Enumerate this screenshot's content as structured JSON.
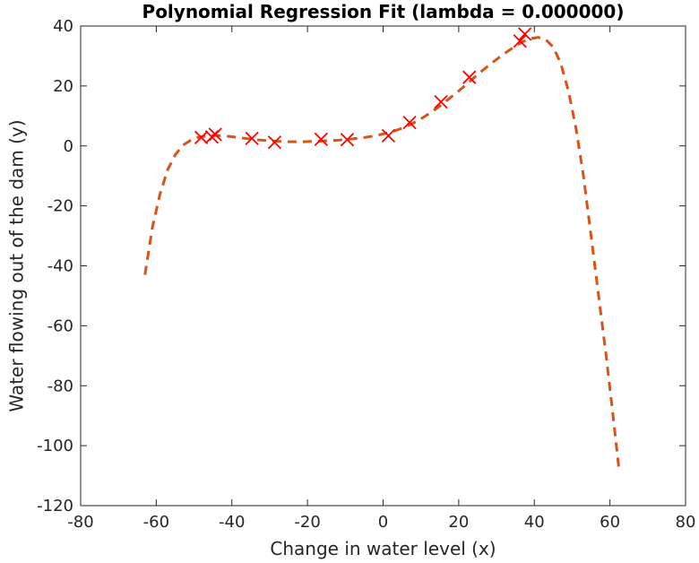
{
  "chart_data": {
    "type": "scatter",
    "title": "Polynomial Regression Fit (lambda = 0.000000)",
    "xlabel": "Change in water level (x)",
    "ylabel": "Water flowing out of the dam (y)",
    "xlim": [
      -80,
      80
    ],
    "ylim": [
      -120,
      40
    ],
    "xticks": [
      -80,
      -60,
      -40,
      -20,
      0,
      20,
      40,
      60,
      80
    ],
    "yticks": [
      -120,
      -100,
      -80,
      -60,
      -40,
      -20,
      0,
      20,
      40
    ],
    "xtick_labels": [
      "-80",
      "-60",
      "-40",
      "-20",
      "0",
      "20",
      "40",
      "60",
      "80"
    ],
    "ytick_labels": [
      "-120",
      "-100",
      "-80",
      "-60",
      "-40",
      "-20",
      "0",
      "20",
      "40"
    ],
    "grid": false,
    "box": true,
    "series": [
      {
        "kind": "scatter",
        "marker": "x",
        "color": "#ff0000",
        "x": [
          -48.1,
          -45.3,
          -44.4,
          -34.7,
          -28.7,
          -16.4,
          -9.5,
          1.4,
          7.0,
          15.3,
          22.8,
          36.2,
          37.5
        ],
        "y": [
          2.8,
          3.0,
          3.8,
          2.5,
          1.2,
          2.2,
          2.1,
          3.4,
          7.8,
          14.7,
          22.9,
          35.0,
          37.3
        ]
      },
      {
        "kind": "line",
        "style": "dashed",
        "color": "#d95319",
        "x": [
          -63,
          -61,
          -59,
          -57,
          -55,
          -53,
          -51,
          -49,
          -47,
          -45,
          -43,
          -41,
          -39,
          -37,
          -35,
          -33,
          -31,
          -29,
          -27,
          -25,
          -23,
          -21,
          -19,
          -17,
          -15,
          -13,
          -11,
          -9,
          -7,
          -5,
          -3,
          -1,
          1,
          3,
          5,
          7,
          9,
          11,
          13,
          15,
          17,
          19,
          21,
          23,
          25,
          27,
          29,
          31,
          33,
          35,
          37,
          39,
          41,
          43,
          45,
          47,
          49,
          51,
          53,
          55,
          57,
          59,
          61,
          62.5
        ],
        "y": [
          -43,
          -27,
          -16,
          -8,
          -3,
          0.2,
          1.8,
          2.8,
          3.3,
          3.5,
          3.4,
          3.2,
          2.9,
          2.6,
          2.3,
          2.0,
          1.8,
          1.6,
          1.5,
          1.4,
          1.4,
          1.4,
          1.5,
          1.6,
          1.7,
          1.8,
          2.0,
          2.2,
          2.5,
          2.8,
          3.2,
          3.7,
          4.3,
          5.0,
          5.9,
          7.0,
          8.3,
          9.8,
          11.5,
          13.3,
          15.3,
          17.3,
          19.4,
          21.6,
          23.8,
          25.9,
          27.9,
          29.8,
          31.6,
          33.3,
          34.8,
          35.8,
          36.2,
          35.5,
          33.0,
          27.5,
          18.5,
          6.0,
          -10.0,
          -30.0,
          -50.0,
          -70.0,
          -92.0,
          -109.0
        ]
      }
    ]
  }
}
